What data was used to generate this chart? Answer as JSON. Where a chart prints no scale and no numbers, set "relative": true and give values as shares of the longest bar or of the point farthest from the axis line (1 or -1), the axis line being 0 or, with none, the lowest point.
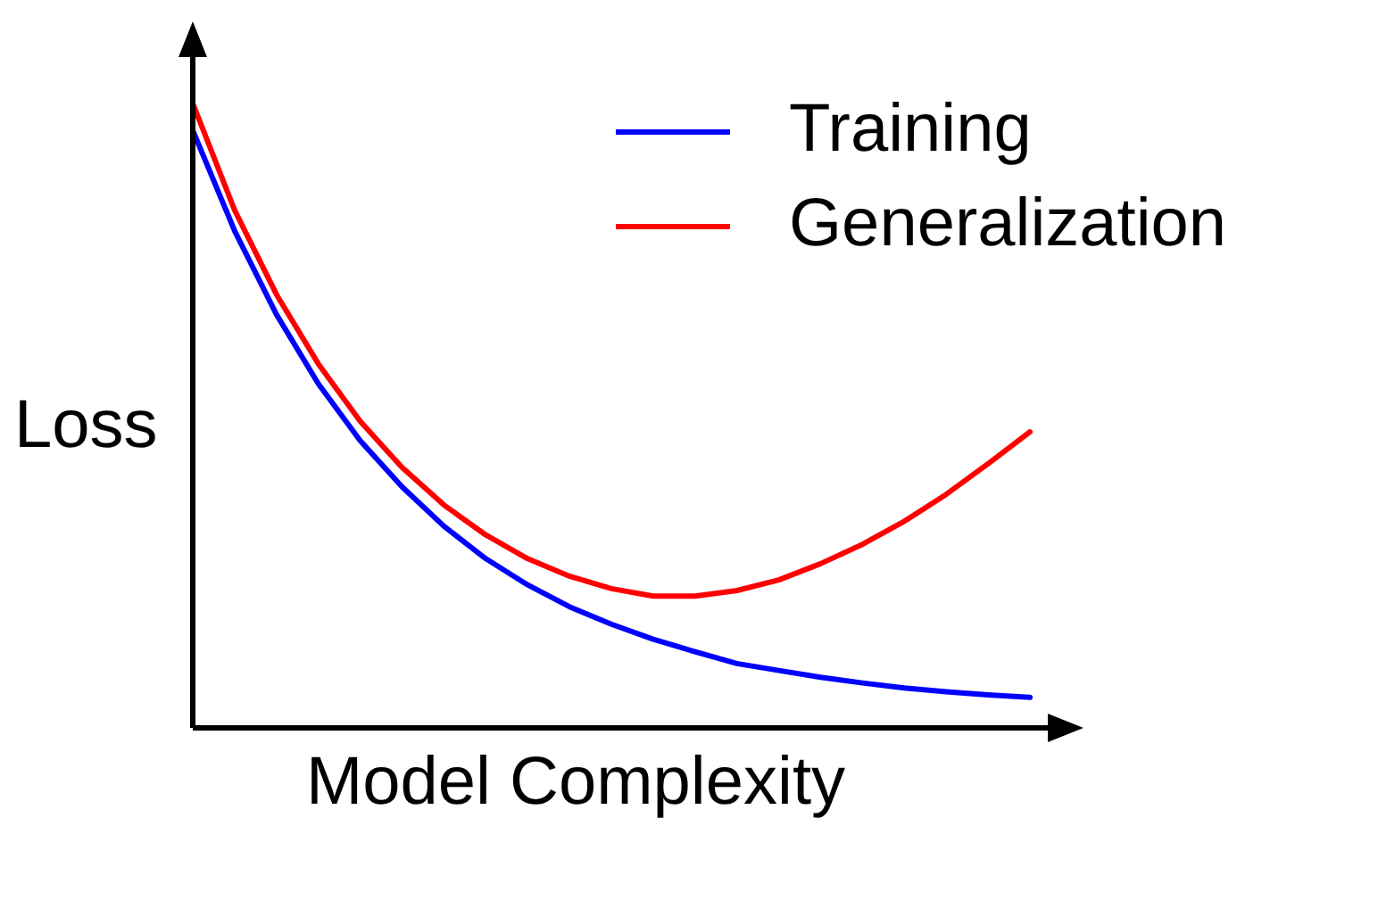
{
  "chart_data": {
    "type": "line",
    "relative": true,
    "xlabel": "Model Complexity",
    "ylabel": "Loss",
    "legend": "top right",
    "marker": "none",
    "line_style": "solid",
    "categories": [
      null,
      null,
      null,
      null,
      null,
      null,
      null,
      null,
      null,
      null,
      null,
      null,
      null,
      null,
      null,
      null,
      null,
      null,
      null,
      null,
      null
    ],
    "series": [
      {
        "name": "Training",
        "color": "#0000ff",
        "values": [
          0.957,
          0.796,
          0.662,
          0.551,
          0.46,
          0.386,
          0.323,
          0.271,
          0.229,
          0.194,
          0.166,
          0.142,
          0.122,
          0.103,
          0.092,
          0.081,
          0.072,
          0.064,
          0.058,
          0.053,
          0.049
        ]
      },
      {
        "name": "Generalization",
        "color": "#ff0000",
        "values": [
          1,
          0.829,
          0.694,
          0.583,
          0.491,
          0.417,
          0.357,
          0.309,
          0.271,
          0.243,
          0.223,
          0.211,
          0.211,
          0.22,
          0.237,
          0.263,
          0.294,
          0.331,
          0.374,
          0.423,
          0.474
        ]
      }
    ]
  }
}
